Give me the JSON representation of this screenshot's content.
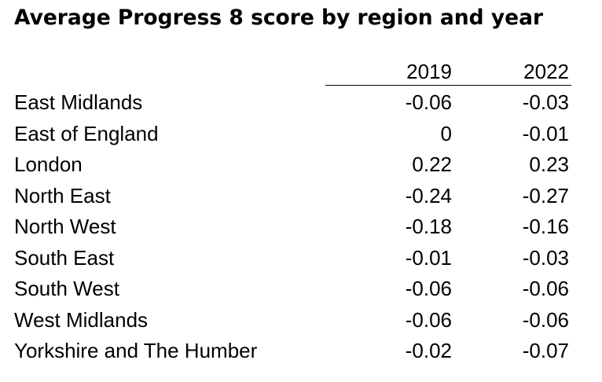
{
  "title": "Average Progress 8 score by region and year",
  "table": {
    "columns": [
      "2019",
      "2022"
    ],
    "rows": [
      {
        "region": "East Midlands",
        "y2019": "-0.06",
        "y2022": "-0.03"
      },
      {
        "region": "East of England",
        "y2019": "0",
        "y2022": "-0.01"
      },
      {
        "region": "London",
        "y2019": "0.22",
        "y2022": "0.23"
      },
      {
        "region": "North East",
        "y2019": "-0.24",
        "y2022": "-0.27"
      },
      {
        "region": "North West",
        "y2019": "-0.18",
        "y2022": "-0.16"
      },
      {
        "region": "South East",
        "y2019": "-0.01",
        "y2022": "-0.03"
      },
      {
        "region": "South West",
        "y2019": "-0.06",
        "y2022": "-0.06"
      },
      {
        "region": "West Midlands",
        "y2019": "-0.06",
        "y2022": "-0.06"
      },
      {
        "region": "Yorkshire and The Humber",
        "y2019": "-0.02",
        "y2022": "-0.07"
      }
    ]
  }
}
